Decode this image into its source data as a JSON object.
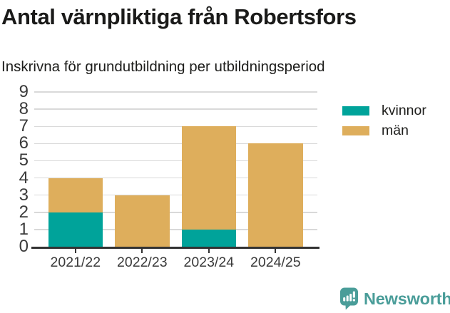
{
  "header": {
    "title": "Antal värnpliktiga från Robertsfors",
    "subtitle": "Inskrivna för grundutbildning per utbildningsperiod"
  },
  "chart_data": {
    "type": "bar",
    "stacked": true,
    "title": "Antal värnpliktiga från Robertsfors",
    "subtitle": "Inskrivna för grundutbildning per utbildningsperiod",
    "categories": [
      "2021/22",
      "2022/23",
      "2023/24",
      "2024/25"
    ],
    "series": [
      {
        "name": "kvinnor",
        "color": "#00a39a",
        "values": [
          2,
          0,
          1,
          0
        ]
      },
      {
        "name": "män",
        "color": "#deae5c",
        "values": [
          2,
          3,
          6,
          6
        ]
      }
    ],
    "totals": [
      4,
      3,
      7,
      6
    ],
    "xlabel": "",
    "ylabel": "",
    "ylim": [
      0,
      9
    ],
    "ytick_step": 1,
    "yticks": [
      0,
      1,
      2,
      3,
      4,
      5,
      6,
      7,
      8,
      9
    ],
    "grid": true,
    "legend_position": "top-right"
  },
  "footer": {
    "brand": "Newsworthy",
    "brand_color": "#4a9d99",
    "logo_icon": "speech-bubble-bar-chart-icon"
  }
}
